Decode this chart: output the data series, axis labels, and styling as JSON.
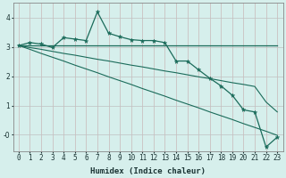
{
  "xlabel": "Humidex (Indice chaleur)",
  "x": [
    0,
    1,
    2,
    3,
    4,
    5,
    6,
    7,
    8,
    9,
    10,
    11,
    12,
    13,
    14,
    15,
    16,
    17,
    18,
    19,
    20,
    21,
    22,
    23
  ],
  "line1": [
    3.05,
    3.15,
    3.1,
    2.98,
    3.32,
    3.27,
    3.22,
    4.2,
    3.47,
    3.35,
    3.25,
    3.22,
    3.22,
    3.15,
    2.52,
    2.52,
    2.22,
    1.93,
    1.67,
    1.35,
    0.85,
    0.78,
    -0.42,
    -0.08
  ],
  "line2": [
    3.05,
    3.05,
    3.05,
    3.05,
    3.05,
    3.05,
    3.05,
    3.05,
    3.05,
    3.05,
    3.05,
    3.05,
    3.05,
    3.05,
    3.05,
    3.05,
    3.05,
    3.05,
    3.05,
    3.05,
    3.05,
    3.05,
    3.05,
    3.05
  ],
  "line3": [
    3.05,
    2.92,
    2.78,
    2.65,
    2.52,
    2.38,
    2.25,
    2.12,
    1.98,
    1.85,
    1.72,
    1.58,
    1.45,
    1.32,
    1.18,
    1.05,
    0.92,
    0.78,
    0.65,
    0.52,
    0.38,
    0.25,
    0.12,
    -0.02
  ],
  "line4": [
    3.05,
    2.98,
    2.92,
    2.85,
    2.78,
    2.72,
    2.65,
    2.58,
    2.52,
    2.45,
    2.38,
    2.32,
    2.25,
    2.18,
    2.12,
    2.05,
    1.98,
    1.92,
    1.85,
    1.78,
    1.72,
    1.65,
    1.12,
    0.78
  ],
  "bg_color": "#d6efec",
  "grid_color_v": "#c8b8b8",
  "grid_color_h": "#c0c0c0",
  "line_color": "#1a6b5a",
  "ylim": [
    -0.55,
    4.5
  ],
  "xlim": [
    -0.5,
    23.5
  ],
  "yticks": [
    0,
    1,
    2,
    3,
    4
  ],
  "ytick_labels": [
    "-0",
    "1",
    "2",
    "3",
    "4"
  ],
  "xlabel_fontsize": 6.5,
  "tick_fontsize": 5.5
}
